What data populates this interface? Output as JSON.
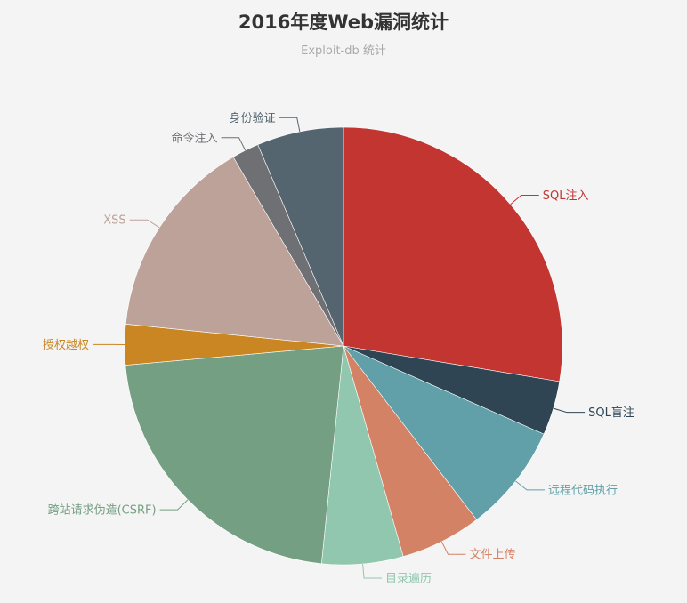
{
  "chart_data": {
    "type": "pie",
    "title": "2016年度Web漏洞统计",
    "subtitle": "Exploit-db 统计",
    "start_angle": "top, clockwise",
    "slices": [
      {
        "label": "SQL注入",
        "value": 27.6,
        "color": "#c23531"
      },
      {
        "label": "SQL盲注",
        "value": 4.0,
        "color": "#2f4554"
      },
      {
        "label": "远程代码执行",
        "value": 8.0,
        "color": "#61a0a8"
      },
      {
        "label": "文件上传",
        "value": 6.0,
        "color": "#d48265"
      },
      {
        "label": "目录遍历",
        "value": 6.0,
        "color": "#91c7ae"
      },
      {
        "label": "跨站请求伪造(CSRF)",
        "value": 22.0,
        "color": "#749f83"
      },
      {
        "label": "授权越权",
        "value": 3.0,
        "color": "#ca8622"
      },
      {
        "label": "XSS",
        "value": 15.0,
        "color": "#bda29a"
      },
      {
        "label": "命令注入",
        "value": 2.0,
        "color": "#6e7074"
      },
      {
        "label": "身份验证",
        "value": 6.4,
        "color": "#546570"
      }
    ]
  }
}
